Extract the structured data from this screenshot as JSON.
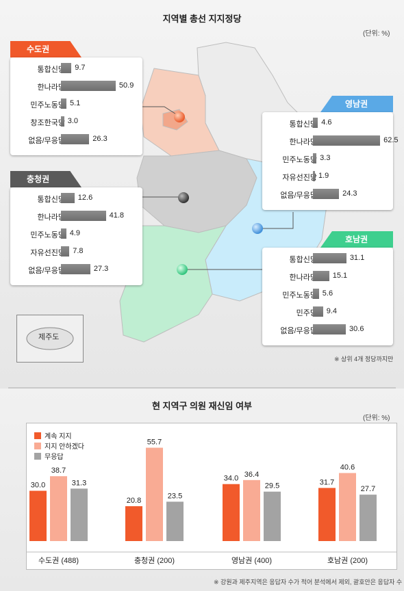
{
  "top": {
    "title": "지역별 총선 지지정당",
    "unit": "(단위: %)",
    "note": "※ 상위 4개 정당까지만",
    "jeju_label": "제주도"
  },
  "bottom": {
    "title": "현 지역구 의원 재신임 여부",
    "unit": "(단위: %)",
    "note": "※ 강원과 제주지역은 응답자 수가 적어 분석에서 제외, 괄호안은 응답자 수"
  },
  "colors": {
    "sudo": "#f0592a",
    "chung": "#5a5a5a",
    "yeong": "#5aa9e6",
    "honam": "#3ecf8e",
    "bar_grey": "#7a7a7a",
    "keep": "#f15a2b",
    "not": "#f9ab94",
    "none": "#a3a3a3"
  },
  "chart_data": [
    {
      "type": "bar",
      "orientation": "horizontal",
      "title": "수도권",
      "categories": [
        "통합신당",
        "한나라당",
        "민주노동당",
        "창조한국당",
        "없음/무응답"
      ],
      "values": [
        9.7,
        50.9,
        5.1,
        3.0,
        26.3
      ],
      "value_labels": [
        "9.7",
        "50.9",
        "5.1",
        "3.0",
        "26.3"
      ]
    },
    {
      "type": "bar",
      "orientation": "horizontal",
      "title": "충청권",
      "categories": [
        "통합신당",
        "한나라당",
        "민주노동당",
        "자유선진당",
        "없음/무응답"
      ],
      "values": [
        12.6,
        41.8,
        4.9,
        7.8,
        27.3
      ],
      "value_labels": [
        "12.6",
        "41.8",
        "4.9",
        "7.8",
        "27.3"
      ]
    },
    {
      "type": "bar",
      "orientation": "horizontal",
      "title": "영남권",
      "categories": [
        "통합신당",
        "한나라당",
        "민주노동당",
        "자유선진당",
        "없음/무응답"
      ],
      "values": [
        4.6,
        62.5,
        3.3,
        1.9,
        24.3
      ],
      "value_labels": [
        "4.6",
        "62.5",
        "3.3",
        "1.9",
        "24.3"
      ]
    },
    {
      "type": "bar",
      "orientation": "horizontal",
      "title": "호남권",
      "categories": [
        "통합신당",
        "한나라당",
        "민주노동당",
        "민주당",
        "없음/무응답"
      ],
      "values": [
        31.1,
        15.1,
        5.6,
        9.4,
        30.6
      ],
      "value_labels": [
        "31.1",
        "15.1",
        "5.6",
        "9.4",
        "30.6"
      ]
    },
    {
      "type": "bar",
      "orientation": "vertical",
      "title": "현 지역구 의원 재신임 여부",
      "categories": [
        "수도권 (488)",
        "충청권 (200)",
        "영남권 (400)",
        "호남권 (200)"
      ],
      "series": [
        {
          "name": "계속 지지",
          "values": [
            30.0,
            20.8,
            34.0,
            31.7
          ],
          "labels": [
            "30.0",
            "20.8",
            "34.0",
            "31.7"
          ]
        },
        {
          "name": "지지 안하겠다",
          "values": [
            38.7,
            55.7,
            36.4,
            40.6
          ],
          "labels": [
            "38.7",
            "55.7",
            "36.4",
            "40.6"
          ]
        },
        {
          "name": "무응답",
          "values": [
            31.3,
            23.5,
            29.5,
            27.7
          ],
          "labels": [
            "31.3",
            "23.5",
            "29.5",
            "27.7"
          ]
        }
      ],
      "legend": "top-left",
      "ylim": [
        0,
        60
      ]
    }
  ]
}
